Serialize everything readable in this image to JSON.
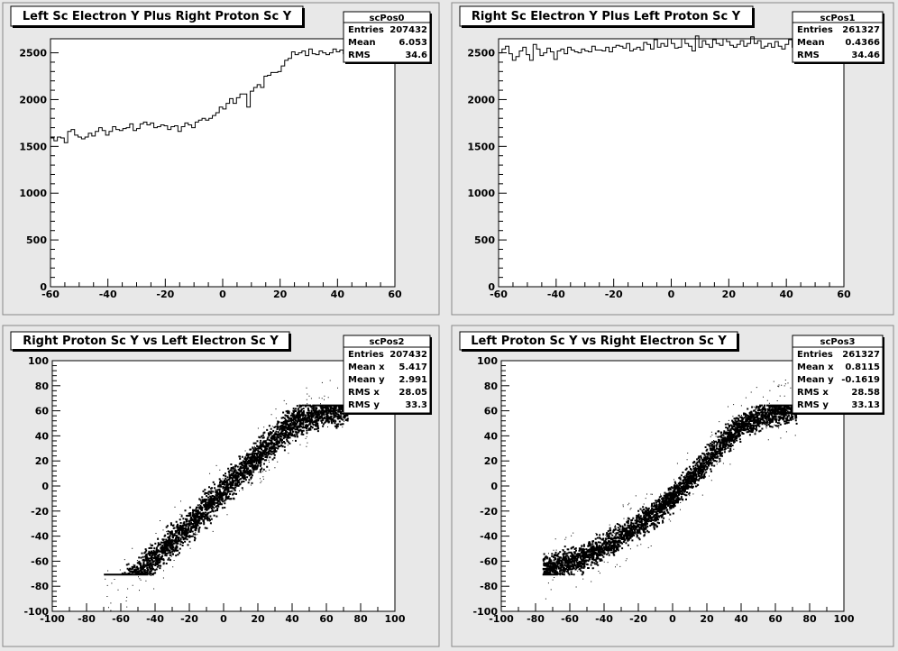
{
  "chart_data": [
    {
      "id": "scPos0",
      "type": "histogram",
      "title": "Left Sc Electron Y Plus Right Proton Sc Y",
      "xlim": [
        -60,
        60
      ],
      "ylim": [
        0,
        2650
      ],
      "xticks": [
        -60,
        -40,
        -20,
        0,
        20,
        40,
        60
      ],
      "yticks": [
        0,
        500,
        1000,
        1500,
        2000,
        2500
      ],
      "stats": {
        "name": "scPos0",
        "rows": [
          {
            "label": "Entries",
            "value": "207432"
          },
          {
            "label": "Mean",
            "value": "6.053"
          },
          {
            "label": "RMS",
            "value": "34.6"
          }
        ]
      },
      "bin_edges": [
        -60,
        60
      ],
      "values": [
        1590,
        1560,
        1600,
        1590,
        1540,
        1660,
        1680,
        1620,
        1600,
        1580,
        1600,
        1640,
        1610,
        1660,
        1700,
        1670,
        1620,
        1660,
        1710,
        1680,
        1670,
        1690,
        1700,
        1740,
        1670,
        1690,
        1740,
        1760,
        1730,
        1750,
        1700,
        1710,
        1730,
        1720,
        1680,
        1710,
        1720,
        1660,
        1710,
        1750,
        1730,
        1700,
        1760,
        1780,
        1800,
        1780,
        1800,
        1830,
        1860,
        1920,
        1900,
        1960,
        2010,
        1960,
        2020,
        2060,
        2060,
        1920,
        2090,
        2130,
        2160,
        2130,
        2250,
        2260,
        2290,
        2290,
        2300,
        2360,
        2420,
        2440,
        2510,
        2480,
        2500,
        2520,
        2470,
        2540,
        2490,
        2480,
        2520,
        2500,
        2480,
        2500,
        2540,
        2510,
        2530,
        2490,
        2510,
        2500,
        2520,
        2500,
        2510,
        2500,
        2520,
        2510,
        2500,
        2480,
        2500,
        2510,
        2500,
        2490
      ]
    },
    {
      "id": "scPos1",
      "type": "histogram",
      "title": "Right Sc Electron Y Plus Left Proton Sc Y",
      "xlim": [
        -60,
        60
      ],
      "ylim": [
        0,
        2650
      ],
      "xticks": [
        -60,
        -40,
        -20,
        0,
        20,
        40,
        60
      ],
      "yticks": [
        0,
        500,
        1000,
        1500,
        2000,
        2500
      ],
      "stats": {
        "name": "scPos1",
        "rows": [
          {
            "label": "Entries",
            "value": "261327"
          },
          {
            "label": "Mean",
            "value": "0.4366"
          },
          {
            "label": "RMS",
            "value": "34.46"
          }
        ]
      },
      "bin_edges": [
        -60,
        60
      ],
      "values": [
        2500,
        2540,
        2570,
        2490,
        2420,
        2460,
        2520,
        2560,
        2480,
        2420,
        2590,
        2540,
        2470,
        2500,
        2550,
        2510,
        2430,
        2520,
        2540,
        2490,
        2560,
        2530,
        2510,
        2500,
        2540,
        2520,
        2510,
        2570,
        2530,
        2530,
        2520,
        2560,
        2510,
        2560,
        2580,
        2570,
        2550,
        2600,
        2520,
        2540,
        2560,
        2530,
        2610,
        2590,
        2540,
        2640,
        2560,
        2600,
        2570,
        2650,
        2600,
        2550,
        2560,
        2650,
        2600,
        2570,
        2520,
        2680,
        2560,
        2630,
        2590,
        2560,
        2640,
        2600,
        2580,
        2650,
        2620,
        2580,
        2560,
        2590,
        2630,
        2570,
        2600,
        2670,
        2600,
        2630,
        2550,
        2570,
        2600,
        2560,
        2620,
        2570,
        2540,
        2590,
        2640,
        2560,
        2620,
        2570,
        2600,
        2580,
        2560,
        2620,
        2640,
        2580,
        2560,
        2600,
        2620,
        2560,
        2480,
        2600
      ]
    },
    {
      "id": "scPos2",
      "type": "scatter",
      "title": "Right Proton Sc Y vs Left Electron Sc Y",
      "xlim": [
        -100,
        100
      ],
      "ylim": [
        -100,
        100
      ],
      "xticks": [
        -100,
        -80,
        -60,
        -40,
        -20,
        0,
        20,
        40,
        60,
        80,
        100
      ],
      "yticks": [
        -100,
        -80,
        -60,
        -40,
        -20,
        0,
        20,
        40,
        60,
        80,
        100
      ],
      "stats": {
        "name": "scPos2",
        "rows": [
          {
            "label": "Entries",
            "value": "207432"
          },
          {
            "label": "Mean x",
            "value": "5.417"
          },
          {
            "label": "Mean y",
            "value": "2.991"
          },
          {
            "label": "RMS x",
            "value": "28.05"
          },
          {
            "label": "RMS y",
            "value": "33.3"
          }
        ]
      },
      "band_core": [
        [
          -45,
          -62
        ],
        [
          -20,
          -30
        ],
        [
          0,
          -2
        ],
        [
          20,
          25
        ],
        [
          40,
          52
        ],
        [
          60,
          60
        ],
        [
          70,
          62
        ]
      ],
      "band_halfwidth": 6,
      "x_range": [
        -70,
        72
      ],
      "y_clip": [
        -70,
        65
      ]
    },
    {
      "id": "scPos3",
      "type": "scatter",
      "title": "Left Proton Sc Y vs Right Electron Sc Y",
      "xlim": [
        -100,
        100
      ],
      "ylim": [
        -100,
        100
      ],
      "xticks": [
        -100,
        -80,
        -60,
        -40,
        -20,
        0,
        20,
        40,
        60,
        80,
        100
      ],
      "yticks": [
        -100,
        -80,
        -60,
        -40,
        -20,
        0,
        20,
        40,
        60,
        80,
        100
      ],
      "stats": {
        "name": "scPos3",
        "rows": [
          {
            "label": "Entries",
            "value": "261327"
          },
          {
            "label": "Mean x",
            "value": "0.8115"
          },
          {
            "label": "Mean y",
            "value": "-0.1619"
          },
          {
            "label": "RMS x",
            "value": "28.58"
          },
          {
            "label": "RMS y",
            "value": "33.13"
          }
        ]
      },
      "band_core": [
        [
          -72,
          -65
        ],
        [
          -50,
          -55
        ],
        [
          -30,
          -40
        ],
        [
          -10,
          -20
        ],
        [
          10,
          5
        ],
        [
          25,
          30
        ],
        [
          40,
          50
        ],
        [
          55,
          58
        ],
        [
          70,
          62
        ]
      ],
      "band_halfwidth": 5,
      "x_range": [
        -76,
        72
      ],
      "y_clip": [
        -70,
        65
      ]
    }
  ],
  "colors": {
    "pad_bg": "#e8e8e8",
    "frame_bg": "#ffffff",
    "ink": "#000000"
  }
}
